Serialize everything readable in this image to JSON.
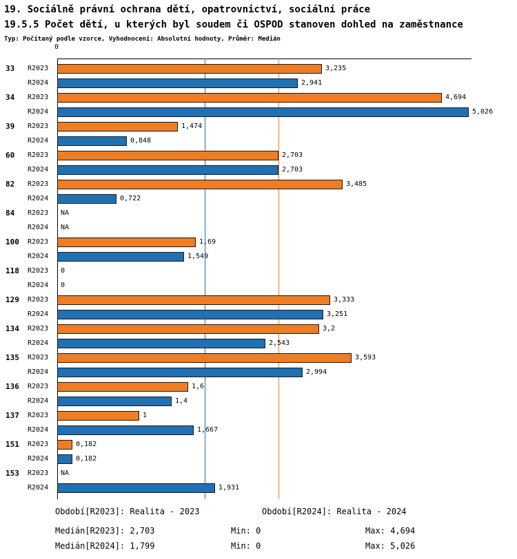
{
  "header": {
    "title_line1": "19. Sociálně právní ochrana dětí, opatrovnictví, sociální práce",
    "title_line2": "19.5.5 Počet dětí, u kterých byl soudem či OSPOD stanoven dohled na zaměstnance",
    "subtitle": "Typ: Počítaný podle vzorce, Vyhodnocení: Absolutní hodnoty, Průměr: Medián"
  },
  "chart_data": {
    "type": "bar",
    "orientation": "horizontal",
    "axis_zero_label": "0",
    "xlim": [
      0,
      5.05
    ],
    "grid": false,
    "series": [
      {
        "name": "R2023",
        "color": "#EE7D23"
      },
      {
        "name": "R2024",
        "color": "#2070B4"
      }
    ],
    "median_lines": [
      {
        "series": "R2023",
        "value": 2.703,
        "display": "2,703"
      },
      {
        "series": "R2024",
        "value": 1.799,
        "display": "1,799"
      }
    ],
    "groups": [
      {
        "label": "33",
        "bars": [
          {
            "series": "R2023",
            "value": 3.235,
            "display": "3,235"
          },
          {
            "series": "R2024",
            "value": 2.941,
            "display": "2,941"
          }
        ]
      },
      {
        "label": "34",
        "bars": [
          {
            "series": "R2023",
            "value": 4.694,
            "display": "4,694"
          },
          {
            "series": "R2024",
            "value": 5.026,
            "display": "5,026"
          }
        ]
      },
      {
        "label": "39",
        "bars": [
          {
            "series": "R2023",
            "value": 1.474,
            "display": "1,474"
          },
          {
            "series": "R2024",
            "value": 0.848,
            "display": "0,848"
          }
        ]
      },
      {
        "label": "60",
        "bars": [
          {
            "series": "R2023",
            "value": 2.703,
            "display": "2,703"
          },
          {
            "series": "R2024",
            "value": 2.703,
            "display": "2,703"
          }
        ]
      },
      {
        "label": "82",
        "bars": [
          {
            "series": "R2023",
            "value": 3.485,
            "display": "3,485"
          },
          {
            "series": "R2024",
            "value": 0.722,
            "display": "0,722"
          }
        ]
      },
      {
        "label": "84",
        "bars": [
          {
            "series": "R2023",
            "value": null,
            "display": "NA"
          },
          {
            "series": "R2024",
            "value": null,
            "display": "NA"
          }
        ]
      },
      {
        "label": "100",
        "bars": [
          {
            "series": "R2023",
            "value": 1.69,
            "display": "1,69"
          },
          {
            "series": "R2024",
            "value": 1.549,
            "display": "1,549"
          }
        ]
      },
      {
        "label": "118",
        "bars": [
          {
            "series": "R2023",
            "value": 0,
            "display": "0"
          },
          {
            "series": "R2024",
            "value": 0,
            "display": "0"
          }
        ]
      },
      {
        "label": "129",
        "bars": [
          {
            "series": "R2023",
            "value": 3.333,
            "display": "3,333"
          },
          {
            "series": "R2024",
            "value": 3.251,
            "display": "3,251"
          }
        ]
      },
      {
        "label": "134",
        "bars": [
          {
            "series": "R2023",
            "value": 3.2,
            "display": "3,2"
          },
          {
            "series": "R2024",
            "value": 2.543,
            "display": "2,543"
          }
        ]
      },
      {
        "label": "135",
        "bars": [
          {
            "series": "R2023",
            "value": 3.593,
            "display": "3,593"
          },
          {
            "series": "R2024",
            "value": 2.994,
            "display": "2,994"
          }
        ]
      },
      {
        "label": "136",
        "bars": [
          {
            "series": "R2023",
            "value": 1.6,
            "display": "1,6"
          },
          {
            "series": "R2024",
            "value": 1.4,
            "display": "1,4"
          }
        ]
      },
      {
        "label": "137",
        "bars": [
          {
            "series": "R2023",
            "value": 1,
            "display": "1"
          },
          {
            "series": "R2024",
            "value": 1.667,
            "display": "1,667"
          }
        ]
      },
      {
        "label": "151",
        "bars": [
          {
            "series": "R2023",
            "value": 0.182,
            "display": "0,182"
          },
          {
            "series": "R2024",
            "value": 0.182,
            "display": "0,182"
          }
        ]
      },
      {
        "label": "153",
        "bars": [
          {
            "series": "R2023",
            "value": null,
            "display": "NA"
          },
          {
            "series": "R2024",
            "value": 1.931,
            "display": "1,931"
          }
        ]
      }
    ]
  },
  "footer": {
    "period_r2023": "Období[R2023]: Realita - 2023",
    "period_r2024": "Období[R2024]: Realita - 2024",
    "median_r2023": "Medián[R2023]: 2,703",
    "min_r2023": "Min: 0",
    "max_r2023": "Max: 4,694",
    "median_r2024": "Medián[R2024]: 1,799",
    "min_r2024": "Min: 0",
    "max_r2024": "Max: 5,026"
  }
}
